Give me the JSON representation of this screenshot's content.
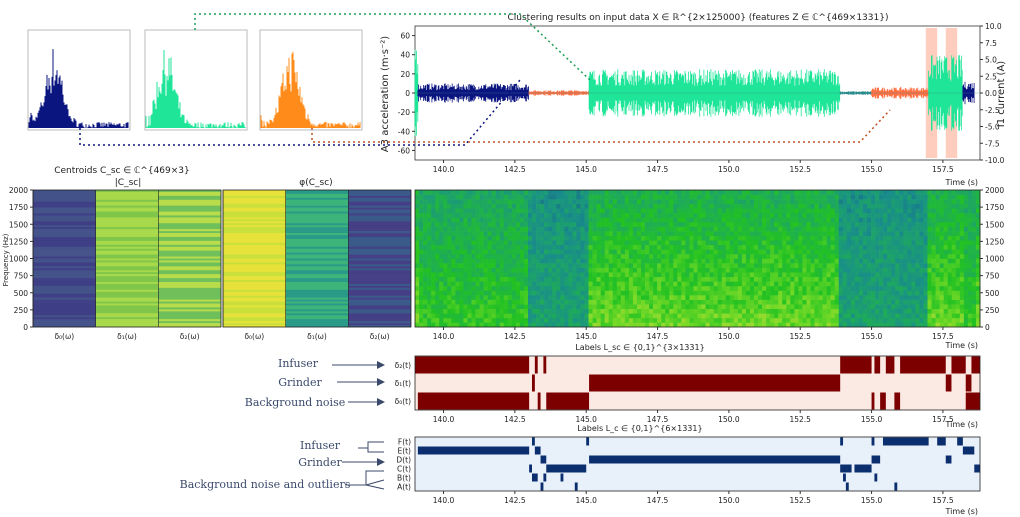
{
  "colors": {
    "navy": "#0b1580",
    "green": "#1fe598",
    "orange": "#ff8c1a",
    "salmon": "#ff7043",
    "dark_red": "#7d0000",
    "pale": "#fbe9e3",
    "blue_label": "#0b2f6e",
    "pale_blue": "#e8f0fa",
    "arrow": "#3b4a6b"
  },
  "icons": [
    "arrow-right-icon"
  ],
  "top_plot": {
    "title": "Clustering results on input data X ∈ ℝ^{2×125000} (features Z ∈ ℂ^{469×1331})",
    "y_left_label": "A3 acceleration (m·s⁻²)",
    "y_right_label": "I1 current (A)",
    "x_label": "Time (s)"
  },
  "centroids": {
    "title": "Centroids C_sc ∈ ℂ^{469×3}",
    "mag_title": "|C_sc|",
    "phase_title": "φ(C_sc)",
    "ylabel": "Frequency (Hz)",
    "xlabels": [
      "δ₀(ω)",
      "δ₁(ω)",
      "δ₂(ω)"
    ]
  },
  "spectrogram": {
    "x_label": "Time (s)"
  },
  "labels_sc": {
    "title": "Labels L_sc ∈ {0,1}^{3×1331}",
    "rows": [
      "δ₂(t)",
      "δ₁(t)",
      "δ₀(t)"
    ],
    "x_label": "Time (s)"
  },
  "labels_c": {
    "title": "Labels L_c ∈ {0,1}^{6×1331}",
    "rows": [
      "F(t)",
      "E(t)",
      "D(t)",
      "C(t)",
      "B(t)",
      "A(t)"
    ],
    "x_label": "Time (s)"
  },
  "annotations": {
    "infuser": "Infuser",
    "grinder": "Grinder",
    "background": "Background noise",
    "background_outliers": "Background noise and outliers"
  },
  "chart_data": [
    {
      "type": "line",
      "name": "time-series",
      "x_ticks": [
        140.0,
        142.5,
        145.0,
        147.5,
        150.0,
        152.5,
        155.0,
        157.5
      ],
      "xlim": [
        139.0,
        158.8
      ],
      "ylim_left": [
        -70,
        70
      ],
      "y_ticks_left": [
        -60,
        -40,
        -20,
        0,
        20,
        40,
        60
      ],
      "ylim_right": [
        -10,
        10
      ],
      "y_ticks_right": [
        -10.0,
        -7.5,
        -5.0,
        -2.5,
        0.0,
        2.5,
        5.0,
        7.5,
        10.0
      ],
      "segments": [
        {
          "start": 139.0,
          "end": 139.1,
          "amp": 60,
          "cluster": "green"
        },
        {
          "start": 139.1,
          "end": 143.0,
          "amp": 10,
          "cluster": "navy"
        },
        {
          "start": 143.0,
          "end": 145.1,
          "amp": 3,
          "cluster": "orange"
        },
        {
          "start": 145.1,
          "end": 153.9,
          "amp": 25,
          "cluster": "green"
        },
        {
          "start": 153.9,
          "end": 155.0,
          "amp": 2,
          "cluster": "teal"
        },
        {
          "start": 155.0,
          "end": 157.0,
          "amp": 6,
          "cluster": "orange"
        },
        {
          "start": 157.0,
          "end": 158.2,
          "amp": 40,
          "cluster": "green"
        },
        {
          "start": 158.2,
          "end": 158.6,
          "amp": 12,
          "cluster": "navy"
        }
      ],
      "highlights": [
        [
          156.9,
          157.3
        ],
        [
          157.6,
          158.0
        ]
      ]
    },
    {
      "type": "heatmap",
      "name": "centroid-spectra",
      "freq_ticks": [
        0,
        250,
        500,
        750,
        1000,
        1250,
        1500,
        1750,
        2000
      ],
      "ylim": [
        0,
        2000
      ]
    },
    {
      "type": "heatmap",
      "name": "spectrogram",
      "x_ticks": [
        140.0,
        142.5,
        145.0,
        147.5,
        150.0,
        152.5,
        155.0,
        157.5
      ],
      "freq_ticks": [
        0,
        250,
        500,
        750,
        1000,
        1250,
        1500,
        1750,
        2000
      ],
      "xlim": [
        139.0,
        158.8
      ]
    },
    {
      "type": "table",
      "name": "labels-sc",
      "x_ticks": [
        140.0,
        142.5,
        145.0,
        147.5,
        150.0,
        152.5,
        155.0,
        157.5
      ],
      "xlim": [
        139.0,
        158.8
      ],
      "intervals": {
        "d2": [
          [
            139.0,
            143.0
          ],
          [
            143.2,
            143.3
          ],
          [
            143.5,
            143.6
          ],
          [
            153.9,
            155.0
          ],
          [
            155.1,
            155.3
          ],
          [
            155.5,
            155.8
          ],
          [
            156.0,
            157.6
          ],
          [
            157.8,
            158.3
          ],
          [
            158.5,
            158.8
          ]
        ],
        "d1": [
          [
            145.1,
            153.9
          ],
          [
            143.1,
            143.2
          ],
          [
            157.6,
            157.8
          ],
          [
            158.3,
            158.5
          ]
        ],
        "d0": [
          [
            139.1,
            143.0
          ],
          [
            143.3,
            143.4
          ],
          [
            143.6,
            145.1
          ],
          [
            155.0,
            155.1
          ],
          [
            155.3,
            155.5
          ],
          [
            155.8,
            156.0
          ],
          [
            158.3,
            158.8
          ]
        ]
      }
    },
    {
      "type": "table",
      "name": "labels-c",
      "x_ticks": [
        140.0,
        142.5,
        145.0,
        147.5,
        150.0,
        152.5,
        155.0,
        157.5
      ],
      "xlim": [
        139.0,
        158.8
      ],
      "intervals": {
        "F": [
          [
            143.1,
            143.2
          ],
          [
            145.0,
            145.1
          ],
          [
            153.9,
            154.0
          ],
          [
            155.0,
            155.1
          ],
          [
            155.4,
            157.0
          ],
          [
            157.3,
            157.6
          ],
          [
            158.0,
            158.2
          ]
        ],
        "E": [
          [
            139.1,
            143.0
          ],
          [
            143.2,
            143.4
          ],
          [
            158.2,
            158.6
          ]
        ],
        "D": [
          [
            143.4,
            143.6
          ],
          [
            145.1,
            153.9
          ],
          [
            155.0,
            155.3
          ],
          [
            157.6,
            157.8
          ]
        ],
        "C": [
          [
            143.0,
            143.1
          ],
          [
            143.6,
            145.0
          ],
          [
            153.9,
            154.3
          ],
          [
            154.4,
            155.0
          ],
          [
            158.6,
            158.8
          ]
        ],
        "B": [
          [
            143.1,
            143.3
          ],
          [
            143.5,
            143.6
          ],
          [
            144.1,
            144.2
          ],
          [
            154.0,
            154.1
          ],
          [
            155.1,
            155.2
          ]
        ],
        "A": [
          [
            143.4,
            143.5
          ],
          [
            144.6,
            144.7
          ],
          [
            154.1,
            154.2
          ],
          [
            155.8,
            155.9
          ]
        ]
      }
    }
  ]
}
